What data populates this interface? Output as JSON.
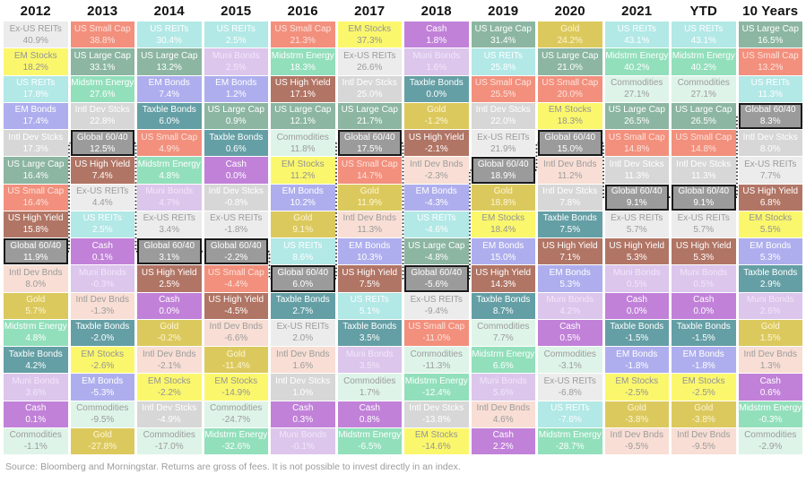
{
  "footer": {
    "source": "Source: Bloomberg and Morningstar. Returns are gross of fees. It is not possible to invest directly in an index."
  },
  "palette": {
    "ex_us_reits": {
      "label": "Ex-US REITs",
      "bg": "#ececec",
      "fg": "#9c9c9c"
    },
    "em_stocks": {
      "label": "EM Stocks",
      "bg": "#fbf76d",
      "fg": "#949494"
    },
    "us_reits": {
      "label": "US REITs",
      "bg": "#b2e8e6",
      "fg": "#ffffff"
    },
    "em_bonds": {
      "label": "EM Bonds",
      "bg": "#aeaeee",
      "fg": "#ffffff"
    },
    "intl_dev_stcks": {
      "label": "Intl Dev Stcks",
      "bg": "#d7d7d7",
      "fg": "#ffffff"
    },
    "us_large_cap": {
      "label": "US Large Cap",
      "bg": "#8cb6a2",
      "fg": "#ffffff"
    },
    "us_small_cap": {
      "label": "US Small Cap",
      "bg": "#f2907d",
      "fg": "#fde4de"
    },
    "us_high_yield": {
      "label": "US High Yield",
      "bg": "#b17565",
      "fg": "#ffffff"
    },
    "global_60_40": {
      "label": "Global 60/40",
      "bg": "#9b9b9b",
      "fg": "#ffffff"
    },
    "intl_dev_bnds": {
      "label": "Intl Dev Bnds",
      "bg": "#f8ded4",
      "fg": "#9c9c9c"
    },
    "gold": {
      "label": "Gold",
      "bg": "#dcc95d",
      "fg": "#fdf6d8"
    },
    "midstrm_energy": {
      "label": "Midstrm Energy",
      "bg": "#92dfbb",
      "fg": "#ffffff"
    },
    "taxble_bonds": {
      "label": "Taxble Bonds",
      "bg": "#649fa5",
      "fg": "#ffffff"
    },
    "muni_bonds": {
      "label": "Muni Bonds",
      "bg": "#dcc6ec",
      "fg": "#f3e6fb"
    },
    "cash": {
      "label": "Cash",
      "bg": "#c181d8",
      "fg": "#ffffff"
    },
    "commodities": {
      "label": "Commodities",
      "bg": "#def4e8",
      "fg": "#9c9c9c"
    }
  },
  "chart_data": {
    "type": "table",
    "title": "Asset class returns ranked by year",
    "highlight_asset": "global_60_40",
    "path_style": {
      "stroke": "#1a1a1a",
      "dash": "1.5 2.6"
    },
    "columns": [
      {
        "header": "2012",
        "cells": [
          {
            "asset": "ex_us_reits",
            "v": 40.9
          },
          {
            "asset": "em_stocks",
            "v": 18.2
          },
          {
            "asset": "us_reits",
            "v": 17.8
          },
          {
            "asset": "em_bonds",
            "v": 17.4
          },
          {
            "asset": "intl_dev_stcks",
            "v": 17.3
          },
          {
            "asset": "us_large_cap",
            "v": 16.4
          },
          {
            "asset": "us_small_cap",
            "v": 16.4
          },
          {
            "asset": "us_high_yield",
            "v": 15.8
          },
          {
            "asset": "global_60_40",
            "v": 11.9
          },
          {
            "asset": "intl_dev_bnds",
            "v": 8.0
          },
          {
            "asset": "gold",
            "v": 5.7
          },
          {
            "asset": "midstrm_energy",
            "v": 4.8
          },
          {
            "asset": "taxble_bonds",
            "v": 4.2
          },
          {
            "asset": "muni_bonds",
            "v": 3.6
          },
          {
            "asset": "cash",
            "v": 0.1
          },
          {
            "asset": "commodities",
            "v": -1.1
          }
        ]
      },
      {
        "header": "2013",
        "cells": [
          {
            "asset": "us_small_cap",
            "v": 38.8
          },
          {
            "asset": "us_large_cap",
            "v": 33.1
          },
          {
            "asset": "midstrm_energy",
            "v": 27.6
          },
          {
            "asset": "intl_dev_stcks",
            "v": 22.8
          },
          {
            "asset": "global_60_40",
            "v": 12.5
          },
          {
            "asset": "us_high_yield",
            "v": 7.4
          },
          {
            "asset": "ex_us_reits",
            "v": 4.4
          },
          {
            "asset": "us_reits",
            "v": 2.5
          },
          {
            "asset": "cash",
            "v": 0.1
          },
          {
            "asset": "muni_bonds",
            "v": -0.3
          },
          {
            "asset": "intl_dev_bnds",
            "v": -1.3
          },
          {
            "asset": "taxble_bonds",
            "v": -2.0
          },
          {
            "asset": "em_stocks",
            "v": -2.6
          },
          {
            "asset": "em_bonds",
            "v": -5.3
          },
          {
            "asset": "commodities",
            "v": -9.5
          },
          {
            "asset": "gold",
            "v": -27.8
          }
        ]
      },
      {
        "header": "2014",
        "cells": [
          {
            "asset": "us_reits",
            "v": 30.4
          },
          {
            "asset": "us_large_cap",
            "v": 13.2
          },
          {
            "asset": "em_bonds",
            "v": 7.4
          },
          {
            "asset": "taxble_bonds",
            "v": 6.0
          },
          {
            "asset": "us_small_cap",
            "v": 4.9
          },
          {
            "asset": "midstrm_energy",
            "v": 4.8
          },
          {
            "asset": "muni_bonds",
            "v": 4.7
          },
          {
            "asset": "ex_us_reits",
            "v": 3.4
          },
          {
            "asset": "global_60_40",
            "v": 3.1
          },
          {
            "asset": "us_high_yield",
            "v": 2.5
          },
          {
            "asset": "cash",
            "v": 0.0
          },
          {
            "asset": "gold",
            "v": -0.2
          },
          {
            "asset": "intl_dev_bnds",
            "v": -2.1
          },
          {
            "asset": "em_stocks",
            "v": -2.2
          },
          {
            "asset": "intl_dev_stcks",
            "v": -4.9
          },
          {
            "asset": "commodities",
            "v": -17.0
          }
        ]
      },
      {
        "header": "2015",
        "cells": [
          {
            "asset": "us_reits",
            "v": 2.5
          },
          {
            "asset": "muni_bonds",
            "v": 2.5
          },
          {
            "asset": "em_bonds",
            "v": 1.2
          },
          {
            "asset": "us_large_cap",
            "v": 0.9
          },
          {
            "asset": "taxble_bonds",
            "v": 0.6
          },
          {
            "asset": "cash",
            "v": 0.0
          },
          {
            "asset": "intl_dev_stcks",
            "v": -0.8
          },
          {
            "asset": "ex_us_reits",
            "v": -1.8
          },
          {
            "asset": "global_60_40",
            "v": -2.2
          },
          {
            "asset": "us_small_cap",
            "v": -4.4
          },
          {
            "asset": "us_high_yield",
            "v": -4.5
          },
          {
            "asset": "intl_dev_bnds",
            "v": -6.6
          },
          {
            "asset": "gold",
            "v": -11.4
          },
          {
            "asset": "em_stocks",
            "v": -14.9
          },
          {
            "asset": "commodities",
            "v": -24.7
          },
          {
            "asset": "midstrm_energy",
            "v": -32.6
          }
        ]
      },
      {
        "header": "2016",
        "cells": [
          {
            "asset": "us_small_cap",
            "v": 21.3
          },
          {
            "asset": "midstrm_energy",
            "v": 18.3
          },
          {
            "asset": "us_high_yield",
            "v": 17.1
          },
          {
            "asset": "us_large_cap",
            "v": 12.1
          },
          {
            "asset": "commodities",
            "v": 11.8
          },
          {
            "asset": "em_stocks",
            "v": 11.2
          },
          {
            "asset": "em_bonds",
            "v": 10.2
          },
          {
            "asset": "gold",
            "v": 9.1
          },
          {
            "asset": "us_reits",
            "v": 8.6
          },
          {
            "asset": "global_60_40",
            "v": 6.0
          },
          {
            "asset": "taxble_bonds",
            "v": 2.7
          },
          {
            "asset": "ex_us_reits",
            "v": 2.0
          },
          {
            "asset": "intl_dev_bnds",
            "v": 1.6
          },
          {
            "asset": "intl_dev_stcks",
            "v": 1.0
          },
          {
            "asset": "cash",
            "v": 0.3
          },
          {
            "asset": "muni_bonds",
            "v": -0.1
          }
        ]
      },
      {
        "header": "2017",
        "cells": [
          {
            "asset": "em_stocks",
            "v": 37.3
          },
          {
            "asset": "ex_us_reits",
            "v": 26.6
          },
          {
            "asset": "intl_dev_stcks",
            "v": 25.0
          },
          {
            "asset": "us_large_cap",
            "v": 21.7
          },
          {
            "asset": "global_60_40",
            "v": 17.5
          },
          {
            "asset": "us_small_cap",
            "v": 14.7
          },
          {
            "asset": "gold",
            "v": 11.9
          },
          {
            "asset": "intl_dev_bnds",
            "v": 11.3
          },
          {
            "asset": "em_bonds",
            "v": 10.3
          },
          {
            "asset": "us_high_yield",
            "v": 7.5
          },
          {
            "asset": "us_reits",
            "v": 5.1
          },
          {
            "asset": "taxble_bonds",
            "v": 3.5
          },
          {
            "asset": "muni_bonds",
            "v": 3.5
          },
          {
            "asset": "commodities",
            "v": 1.7
          },
          {
            "asset": "cash",
            "v": 0.8
          },
          {
            "asset": "midstrm_energy",
            "v": -6.5
          }
        ]
      },
      {
        "header": "2018",
        "cells": [
          {
            "asset": "cash",
            "v": 1.8
          },
          {
            "asset": "muni_bonds",
            "v": 1.6
          },
          {
            "asset": "taxble_bonds",
            "v": 0.0
          },
          {
            "asset": "gold",
            "v": -1.2
          },
          {
            "asset": "us_high_yield",
            "v": -2.1
          },
          {
            "asset": "intl_dev_bnds",
            "v": -2.3
          },
          {
            "asset": "em_bonds",
            "v": -4.3
          },
          {
            "asset": "us_reits",
            "v": -4.6
          },
          {
            "asset": "us_large_cap",
            "v": -4.8
          },
          {
            "asset": "global_60_40",
            "v": -5.6
          },
          {
            "asset": "ex_us_reits",
            "v": -9.4
          },
          {
            "asset": "us_small_cap",
            "v": -11.0
          },
          {
            "asset": "commodities",
            "v": -11.3
          },
          {
            "asset": "midstrm_energy",
            "v": -12.4
          },
          {
            "asset": "intl_dev_stcks",
            "v": -13.8
          },
          {
            "asset": "em_stocks",
            "v": -14.6
          }
        ]
      },
      {
        "header": "2019",
        "cells": [
          {
            "asset": "us_large_cap",
            "v": 31.4
          },
          {
            "asset": "us_reits",
            "v": 25.8
          },
          {
            "asset": "us_small_cap",
            "v": 25.5
          },
          {
            "asset": "intl_dev_stcks",
            "v": 22.0
          },
          {
            "asset": "ex_us_reits",
            "v": 21.9
          },
          {
            "asset": "global_60_40",
            "v": 18.9
          },
          {
            "asset": "gold",
            "v": 18.8
          },
          {
            "asset": "em_stocks",
            "v": 18.4
          },
          {
            "asset": "em_bonds",
            "v": 15.0
          },
          {
            "asset": "us_high_yield",
            "v": 14.3
          },
          {
            "asset": "taxble_bonds",
            "v": 8.7
          },
          {
            "asset": "commodities",
            "v": 7.7
          },
          {
            "asset": "midstrm_energy",
            "v": 6.6
          },
          {
            "asset": "muni_bonds",
            "v": 5.6
          },
          {
            "asset": "intl_dev_bnds",
            "v": 4.6
          },
          {
            "asset": "cash",
            "v": 2.2
          }
        ]
      },
      {
        "header": "2020",
        "cells": [
          {
            "asset": "gold",
            "v": 24.2
          },
          {
            "asset": "us_large_cap",
            "v": 21.0
          },
          {
            "asset": "us_small_cap",
            "v": 20.0
          },
          {
            "asset": "em_stocks",
            "v": 18.3
          },
          {
            "asset": "global_60_40",
            "v": 15.0
          },
          {
            "asset": "intl_dev_bnds",
            "v": 11.2
          },
          {
            "asset": "intl_dev_stcks",
            "v": 7.8
          },
          {
            "asset": "taxble_bonds",
            "v": 7.5
          },
          {
            "asset": "us_high_yield",
            "v": 7.1
          },
          {
            "asset": "em_bonds",
            "v": 5.3
          },
          {
            "asset": "muni_bonds",
            "v": 4.2
          },
          {
            "asset": "cash",
            "v": 0.5
          },
          {
            "asset": "commodities",
            "v": -3.1
          },
          {
            "asset": "ex_us_reits",
            "v": -6.8
          },
          {
            "asset": "us_reits",
            "v": -7.6
          },
          {
            "asset": "midstrm_energy",
            "v": -28.7
          }
        ]
      },
      {
        "header": "2021",
        "cells": [
          {
            "asset": "us_reits",
            "v": 43.1
          },
          {
            "asset": "midstrm_energy",
            "v": 40.2
          },
          {
            "asset": "commodities",
            "v": 27.1
          },
          {
            "asset": "us_large_cap",
            "v": 26.5
          },
          {
            "asset": "us_small_cap",
            "v": 14.8
          },
          {
            "asset": "intl_dev_stcks",
            "v": 11.3
          },
          {
            "asset": "global_60_40",
            "v": 9.1
          },
          {
            "asset": "ex_us_reits",
            "v": 5.7
          },
          {
            "asset": "us_high_yield",
            "v": 5.3
          },
          {
            "asset": "muni_bonds",
            "v": 0.5
          },
          {
            "asset": "cash",
            "v": 0.0
          },
          {
            "asset": "taxble_bonds",
            "v": -1.5
          },
          {
            "asset": "em_bonds",
            "v": -1.8
          },
          {
            "asset": "em_stocks",
            "v": -2.5
          },
          {
            "asset": "gold",
            "v": -3.8
          },
          {
            "asset": "intl_dev_bnds",
            "v": -9.5
          }
        ]
      },
      {
        "header": "YTD",
        "cells": [
          {
            "asset": "us_reits",
            "v": 43.1
          },
          {
            "asset": "midstrm_energy",
            "v": 40.2
          },
          {
            "asset": "commodities",
            "v": 27.1
          },
          {
            "asset": "us_large_cap",
            "v": 26.5
          },
          {
            "asset": "us_small_cap",
            "v": 14.8
          },
          {
            "asset": "intl_dev_stcks",
            "v": 11.3
          },
          {
            "asset": "global_60_40",
            "v": 9.1
          },
          {
            "asset": "ex_us_reits",
            "v": 5.7
          },
          {
            "asset": "us_high_yield",
            "v": 5.3
          },
          {
            "asset": "muni_bonds",
            "v": 0.5
          },
          {
            "asset": "cash",
            "v": 0.0
          },
          {
            "asset": "taxble_bonds",
            "v": -1.5
          },
          {
            "asset": "em_bonds",
            "v": -1.8
          },
          {
            "asset": "em_stocks",
            "v": -2.5
          },
          {
            "asset": "gold",
            "v": -3.8
          },
          {
            "asset": "intl_dev_bnds",
            "v": -9.5
          }
        ]
      },
      {
        "header": "10 Years",
        "cells": [
          {
            "asset": "us_large_cap",
            "v": 16.5
          },
          {
            "asset": "us_small_cap",
            "v": 13.2
          },
          {
            "asset": "us_reits",
            "v": 11.3
          },
          {
            "asset": "global_60_40",
            "v": 8.3
          },
          {
            "asset": "intl_dev_stcks",
            "v": 8.0
          },
          {
            "asset": "ex_us_reits",
            "v": 7.7
          },
          {
            "asset": "us_high_yield",
            "v": 6.8
          },
          {
            "asset": "em_stocks",
            "v": 5.5
          },
          {
            "asset": "em_bonds",
            "v": 5.3
          },
          {
            "asset": "taxble_bonds",
            "v": 2.9
          },
          {
            "asset": "muni_bonds",
            "v": 2.6
          },
          {
            "asset": "gold",
            "v": 1.5
          },
          {
            "asset": "intl_dev_bnds",
            "v": 1.3
          },
          {
            "asset": "cash",
            "v": 0.6
          },
          {
            "asset": "midstrm_energy",
            "v": -0.3
          },
          {
            "asset": "commodities",
            "v": -2.9
          }
        ]
      }
    ]
  }
}
